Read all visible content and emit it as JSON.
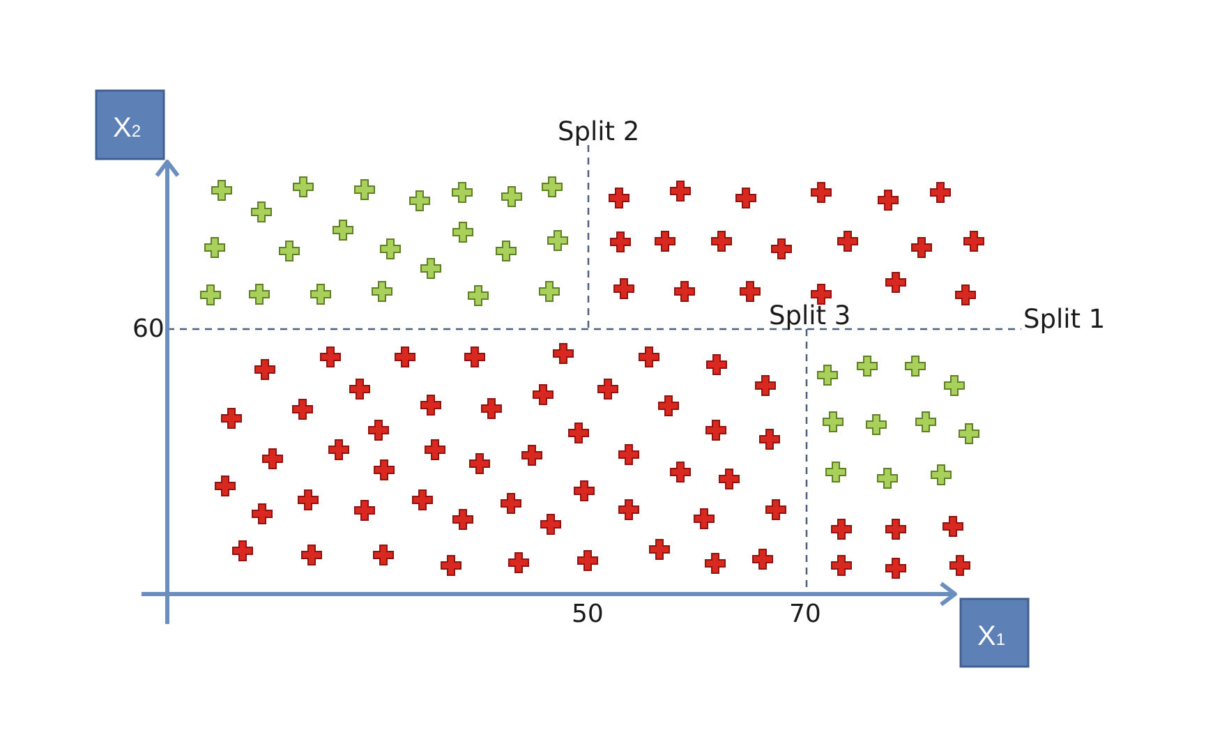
{
  "axes": {
    "x_label": "X",
    "x_subscript": "1",
    "y_label": "X",
    "y_subscript": "2",
    "x_ticks": [
      "50",
      "70"
    ],
    "y_ticks": [
      "60"
    ]
  },
  "splits": {
    "split1": "Split 1",
    "split2": "Split 2",
    "split3": "Split 3"
  },
  "colors": {
    "axis": "#6c8ebf",
    "axis_box": "#5d80b6",
    "axis_box_border": "#3f5f94",
    "split_line": "#4a5f80",
    "red_marker": "#d8281f",
    "red_marker_border": "#8f1410",
    "green_marker": "#a8d05b",
    "green_marker_border": "#5e7f25"
  },
  "icons": {
    "marker": "plus-marker-icon",
    "x_arrow": "arrow-right-icon",
    "y_arrow": "arrow-up-icon"
  }
}
